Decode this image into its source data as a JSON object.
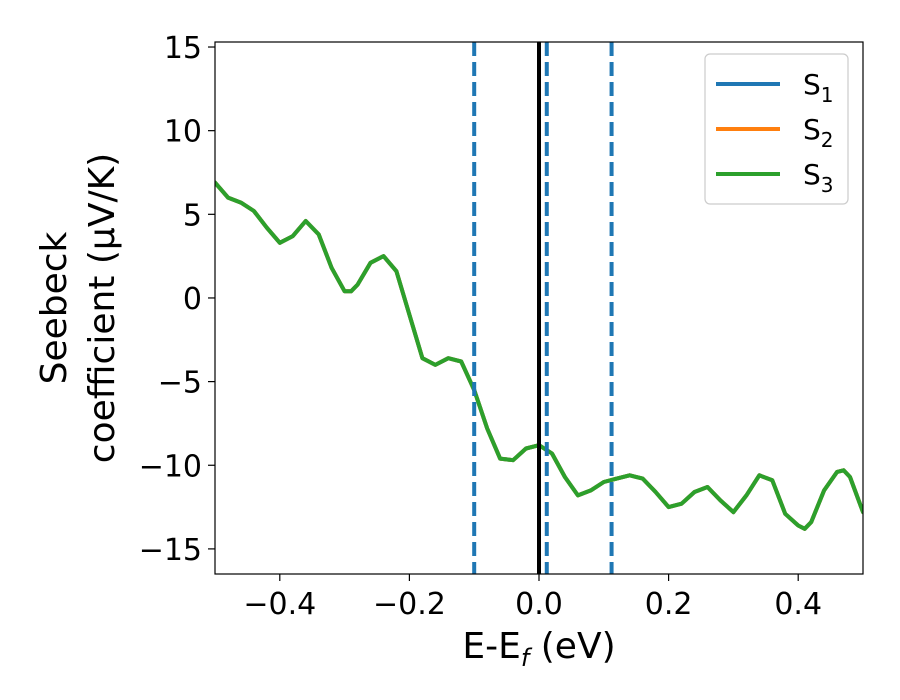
{
  "chart_data": {
    "type": "line",
    "title": "",
    "xlabel": "E-E",
    "xlabel_sub": "f",
    "xlabel_unit": " (eV)",
    "ylabel_line1": "Seebeck",
    "ylabel_line2": "coefficient  (μV/K)",
    "xlim": [
      -0.5,
      0.5
    ],
    "ylim": [
      -16.5,
      15.3
    ],
    "xticks": [
      -0.4,
      -0.2,
      0.0,
      0.2,
      0.4
    ],
    "xtick_labels": [
      "−0.4",
      "−0.2",
      "0.0",
      "0.2",
      "0.4"
    ],
    "yticks": [
      15,
      10,
      5,
      0,
      -5,
      -10,
      -15
    ],
    "ytick_labels": [
      "15",
      "10",
      "5",
      "0",
      "−5",
      "−10",
      "−15"
    ],
    "grid": false,
    "legend_position": "top-right",
    "vertical_lines": [
      {
        "x": -0.1,
        "style": "dashed",
        "color": "#1f77b4"
      },
      {
        "x": 0.0,
        "style": "solid",
        "color": "#000000"
      },
      {
        "x": 0.012,
        "style": "dashed",
        "color": "#1f77b4"
      },
      {
        "x": 0.112,
        "style": "dashed",
        "color": "#1f77b4"
      }
    ],
    "series": [
      {
        "name": "S",
        "subscript": "1",
        "color": "#1f77b4",
        "x": [
          -0.5,
          -0.48,
          -0.46,
          -0.44,
          -0.42,
          -0.4,
          -0.38,
          -0.36,
          -0.34,
          -0.32,
          -0.3,
          -0.29,
          -0.28,
          -0.26,
          -0.24,
          -0.22,
          -0.2,
          -0.18,
          -0.16,
          -0.14,
          -0.12,
          -0.1,
          -0.08,
          -0.06,
          -0.04,
          -0.02,
          0.0,
          0.02,
          0.04,
          0.06,
          0.08,
          0.1,
          0.12,
          0.14,
          0.16,
          0.18,
          0.2,
          0.22,
          0.24,
          0.26,
          0.28,
          0.3,
          0.32,
          0.34,
          0.36,
          0.38,
          0.4,
          0.41,
          0.42,
          0.44,
          0.46,
          0.47,
          0.48,
          0.5
        ],
        "y": [
          6.9,
          6.0,
          5.7,
          5.2,
          4.2,
          3.3,
          3.7,
          4.6,
          3.8,
          1.8,
          0.4,
          0.4,
          0.8,
          2.1,
          2.5,
          1.6,
          -1.0,
          -3.6,
          -4.0,
          -3.6,
          -3.8,
          -5.5,
          -7.8,
          -9.6,
          -9.7,
          -9.0,
          -8.8,
          -9.3,
          -10.7,
          -11.8,
          -11.5,
          -11.0,
          -10.8,
          -10.6,
          -10.8,
          -11.6,
          -12.5,
          -12.3,
          -11.6,
          -11.3,
          -12.1,
          -12.8,
          -11.8,
          -10.6,
          -10.9,
          -12.9,
          -13.6,
          -13.8,
          -13.4,
          -11.5,
          -10.4,
          -10.3,
          -10.7,
          -12.8
        ]
      },
      {
        "name": "S",
        "subscript": "2",
        "color": "#ff7f0e",
        "x": [
          -0.5,
          -0.48,
          -0.46,
          -0.44,
          -0.42,
          -0.4,
          -0.38,
          -0.36,
          -0.34,
          -0.32,
          -0.3,
          -0.29,
          -0.28,
          -0.26,
          -0.24,
          -0.22,
          -0.2,
          -0.18,
          -0.16,
          -0.14,
          -0.12,
          -0.1,
          -0.08,
          -0.06,
          -0.04,
          -0.02,
          0.0,
          0.02,
          0.04,
          0.06,
          0.08,
          0.1,
          0.12,
          0.14,
          0.16,
          0.18,
          0.2,
          0.22,
          0.24,
          0.26,
          0.28,
          0.3,
          0.32,
          0.34,
          0.36,
          0.38,
          0.4,
          0.41,
          0.42,
          0.44,
          0.46,
          0.47,
          0.48,
          0.5
        ],
        "y": [
          6.9,
          6.0,
          5.7,
          5.2,
          4.2,
          3.3,
          3.7,
          4.6,
          3.8,
          1.8,
          0.4,
          0.4,
          0.8,
          2.1,
          2.5,
          1.6,
          -1.0,
          -3.6,
          -4.0,
          -3.6,
          -3.8,
          -5.5,
          -7.8,
          -9.6,
          -9.7,
          -9.0,
          -8.8,
          -9.3,
          -10.7,
          -11.8,
          -11.5,
          -11.0,
          -10.8,
          -10.6,
          -10.8,
          -11.6,
          -12.5,
          -12.3,
          -11.6,
          -11.3,
          -12.1,
          -12.8,
          -11.8,
          -10.6,
          -10.9,
          -12.9,
          -13.6,
          -13.8,
          -13.4,
          -11.5,
          -10.4,
          -10.3,
          -10.7,
          -12.8
        ]
      },
      {
        "name": "S",
        "subscript": "3",
        "color": "#2ca02c",
        "x": [
          -0.5,
          -0.48,
          -0.46,
          -0.44,
          -0.42,
          -0.4,
          -0.38,
          -0.36,
          -0.34,
          -0.32,
          -0.3,
          -0.29,
          -0.28,
          -0.26,
          -0.24,
          -0.22,
          -0.2,
          -0.18,
          -0.16,
          -0.14,
          -0.12,
          -0.1,
          -0.08,
          -0.06,
          -0.04,
          -0.02,
          0.0,
          0.02,
          0.04,
          0.06,
          0.08,
          0.1,
          0.12,
          0.14,
          0.16,
          0.18,
          0.2,
          0.22,
          0.24,
          0.26,
          0.28,
          0.3,
          0.32,
          0.34,
          0.36,
          0.38,
          0.4,
          0.41,
          0.42,
          0.44,
          0.46,
          0.47,
          0.48,
          0.5
        ],
        "y": [
          6.9,
          6.0,
          5.7,
          5.2,
          4.2,
          3.3,
          3.7,
          4.6,
          3.8,
          1.8,
          0.4,
          0.4,
          0.8,
          2.1,
          2.5,
          1.6,
          -1.0,
          -3.6,
          -4.0,
          -3.6,
          -3.8,
          -5.5,
          -7.8,
          -9.6,
          -9.7,
          -9.0,
          -8.8,
          -9.3,
          -10.7,
          -11.8,
          -11.5,
          -11.0,
          -10.8,
          -10.6,
          -10.8,
          -11.6,
          -12.5,
          -12.3,
          -11.6,
          -11.3,
          -12.1,
          -12.8,
          -11.8,
          -10.6,
          -10.9,
          -12.9,
          -13.6,
          -13.8,
          -13.4,
          -11.5,
          -10.4,
          -10.3,
          -10.7,
          -12.8
        ]
      }
    ]
  }
}
